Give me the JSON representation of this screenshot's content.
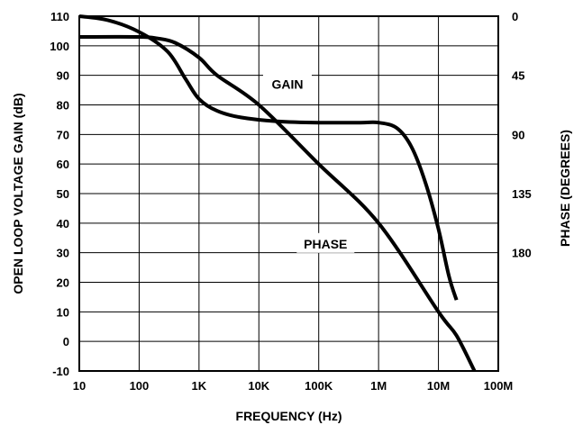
{
  "chart_data": {
    "type": "line",
    "xlabel": "FREQUENCY (Hz)",
    "ylabel": "OPEN LOOP VOLTAGE GAIN (dB)",
    "y2label": "PHASE (DEGREES)",
    "x_scale": "log",
    "xlim": [
      10,
      100000000
    ],
    "ylim": [
      -10,
      110
    ],
    "y2lim": [
      270,
      0
    ],
    "grid": true,
    "xtick_labels": [
      "10",
      "100",
      "1K",
      "10K",
      "100K",
      "1M",
      "10M",
      "100M"
    ],
    "ytick_labels": [
      "110",
      "100",
      "90",
      "80",
      "70",
      "60",
      "50",
      "40",
      "30",
      "20",
      "10",
      "0",
      "-10"
    ],
    "y2tick_labels": [
      "0",
      "45",
      "90",
      "135",
      "180"
    ],
    "y2tick_values": [
      0,
      45,
      90,
      135,
      180
    ],
    "series": [
      {
        "name": "GAIN",
        "axis": "left",
        "x": [
          10,
          100,
          200,
          400,
          1000,
          2000,
          10000,
          100000,
          1000000,
          10000000,
          20000000,
          40000000
        ],
        "y": [
          103,
          103,
          102.5,
          101,
          96,
          90,
          80,
          60,
          40,
          10,
          2,
          -10
        ]
      },
      {
        "name": "PHASE",
        "axis": "right",
        "x": [
          10,
          30,
          100,
          300,
          600,
          1000,
          2000,
          5000,
          20000,
          100000,
          500000,
          1000000,
          2000000,
          3500000,
          6000000,
          10000000,
          15000000,
          20000000
        ],
        "y": [
          0,
          3,
          12,
          27,
          48,
          63,
          72,
          77,
          80,
          81,
          81,
          81,
          85,
          99,
          126,
          162,
          198,
          216
        ]
      }
    ],
    "annotations": [
      "GAIN",
      "PHASE"
    ]
  }
}
